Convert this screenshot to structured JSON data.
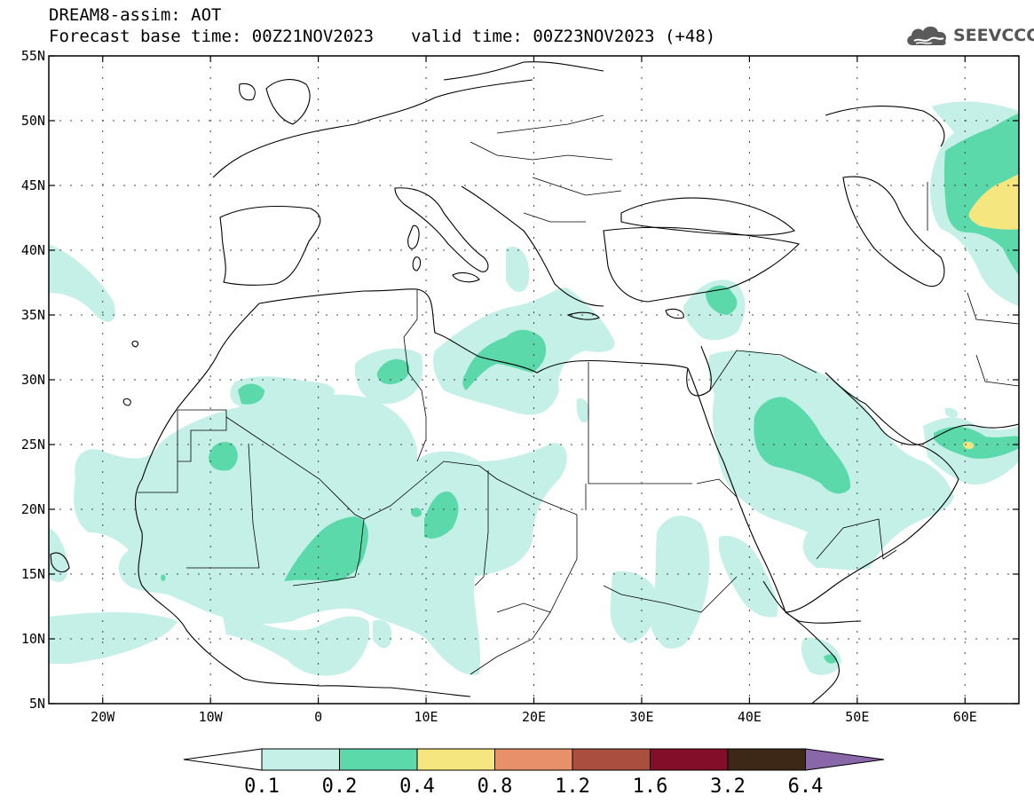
{
  "header": {
    "title": "DREAM8-assim: AOT",
    "base_time_label": "Forecast base time: 00Z21NOV2023",
    "valid_time_label": "valid time: 00Z23NOV2023 (+48)"
  },
  "logo": {
    "text": "SEEVCCC",
    "icon": "cloud-icon",
    "color": "#555555"
  },
  "map": {
    "lon_range": [
      -25,
      65
    ],
    "lat_range": [
      5,
      55
    ],
    "x_ticks": [
      {
        "lon": -20,
        "label": "20W"
      },
      {
        "lon": -10,
        "label": "10W"
      },
      {
        "lon": 0,
        "label": "0"
      },
      {
        "lon": 10,
        "label": "10E"
      },
      {
        "lon": 20,
        "label": "20E"
      },
      {
        "lon": 30,
        "label": "30E"
      },
      {
        "lon": 40,
        "label": "40E"
      },
      {
        "lon": 50,
        "label": "50E"
      },
      {
        "lon": 60,
        "label": "60E"
      }
    ],
    "y_ticks": [
      {
        "lat": 55,
        "label": "55N"
      },
      {
        "lat": 50,
        "label": "50N"
      },
      {
        "lat": 45,
        "label": "45N"
      },
      {
        "lat": 40,
        "label": "40N"
      },
      {
        "lat": 35,
        "label": "35N"
      },
      {
        "lat": 30,
        "label": "30N"
      },
      {
        "lat": 25,
        "label": "25N"
      },
      {
        "lat": 20,
        "label": "20N"
      },
      {
        "lat": 15,
        "label": "15N"
      },
      {
        "lat": 10,
        "label": "10N"
      },
      {
        "lat": 5,
        "label": "5N"
      }
    ],
    "grid": true
  },
  "colorbar": {
    "labels": [
      "0.1",
      "0.2",
      "0.4",
      "0.8",
      "1.2",
      "1.6",
      "3.2",
      "6.4"
    ],
    "colors": [
      "#ffffff",
      "#c4f0e8",
      "#5cd9ab",
      "#f5e680",
      "#e8906a",
      "#aa4f3f",
      "#830e2a",
      "#3d2716",
      "#8a67a8"
    ]
  }
}
